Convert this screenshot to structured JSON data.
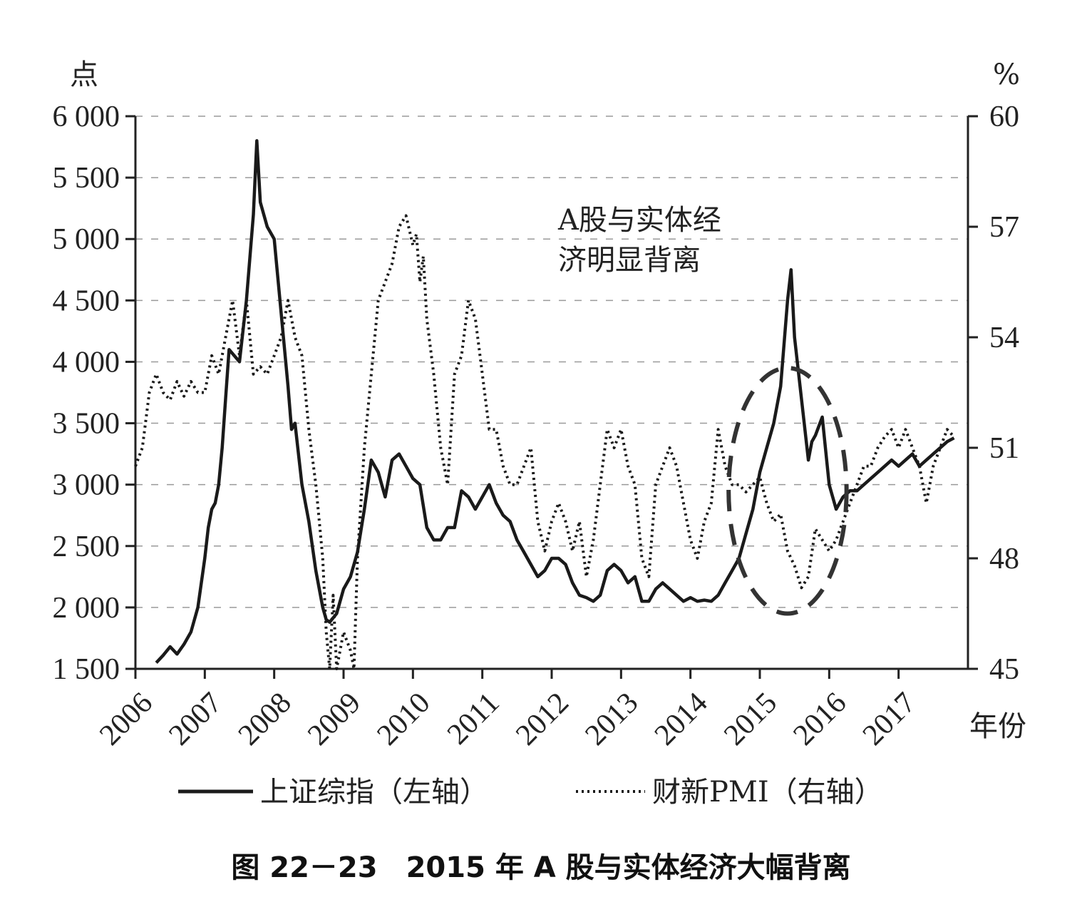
{
  "chart_data": {
    "type": "line",
    "title": "图 22－23　2015 年 A 股与实体经济大幅背离",
    "xlabel": "年份",
    "ylabel_left": "点",
    "ylabel_right": "%",
    "x_ticks": [
      "2006",
      "2007",
      "2008",
      "2009",
      "2010",
      "2011",
      "2012",
      "2013",
      "2014",
      "2015",
      "2016",
      "2017"
    ],
    "x_range": [
      2006.0,
      2018.0
    ],
    "y_left_range": [
      1500,
      6000
    ],
    "y_left_ticks": [
      "1 500",
      "2 000",
      "2 500",
      "3 000",
      "3 500",
      "4 000",
      "4 500",
      "5 000",
      "5 500",
      "6 000"
    ],
    "y_left_tick_values": [
      1500,
      2000,
      2500,
      3000,
      3500,
      4000,
      4500,
      5000,
      5500,
      6000
    ],
    "y_right_range": [
      45,
      60
    ],
    "y_right_ticks": [
      "45",
      "48",
      "51",
      "54",
      "57",
      "60"
    ],
    "y_right_tick_values": [
      45,
      48,
      51,
      54,
      57,
      60
    ],
    "grid": "horizontal-dashed",
    "legend_position": "bottom",
    "annotation": {
      "lines": [
        "A股与实体经",
        "济明显背离"
      ],
      "highlight": {
        "x_center": 2015.4,
        "x_halfwidth": 0.85,
        "y_center": 2950,
        "y_halfwidth": 1000
      }
    },
    "series": [
      {
        "name": "上证综指（左轴）",
        "axis": "left",
        "style": "solid",
        "color": "#1a1a1a",
        "x": [
          2006.3,
          2006.4,
          2006.5,
          2006.6,
          2006.7,
          2006.8,
          2006.9,
          2007.0,
          2007.05,
          2007.1,
          2007.15,
          2007.2,
          2007.25,
          2007.3,
          2007.35,
          2007.5,
          2007.6,
          2007.7,
          2007.75,
          2007.8,
          2007.9,
          2008.0,
          2008.1,
          2008.2,
          2008.25,
          2008.3,
          2008.4,
          2008.5,
          2008.6,
          2008.7,
          2008.75,
          2008.8,
          2008.9,
          2009.0,
          2009.1,
          2009.2,
          2009.3,
          2009.4,
          2009.5,
          2009.6,
          2009.7,
          2009.8,
          2009.9,
          2010.0,
          2010.1,
          2010.2,
          2010.3,
          2010.4,
          2010.5,
          2010.6,
          2010.7,
          2010.8,
          2010.9,
          2011.0,
          2011.1,
          2011.2,
          2011.3,
          2011.4,
          2011.5,
          2011.6,
          2011.7,
          2011.8,
          2011.9,
          2012.0,
          2012.1,
          2012.2,
          2012.3,
          2012.4,
          2012.5,
          2012.6,
          2012.7,
          2012.8,
          2012.9,
          2013.0,
          2013.1,
          2013.2,
          2013.3,
          2013.4,
          2013.5,
          2013.6,
          2013.7,
          2013.8,
          2013.9,
          2014.0,
          2014.1,
          2014.2,
          2014.3,
          2014.4,
          2014.5,
          2014.6,
          2014.7,
          2014.8,
          2014.9,
          2015.0,
          2015.1,
          2015.2,
          2015.3,
          2015.4,
          2015.45,
          2015.5,
          2015.6,
          2015.7,
          2015.75,
          2015.8,
          2015.9,
          2016.0,
          2016.1,
          2016.2,
          2016.3,
          2016.4,
          2016.5,
          2016.6,
          2016.7,
          2016.8,
          2016.9,
          2017.0,
          2017.1,
          2017.2,
          2017.3,
          2017.4,
          2017.5,
          2017.6,
          2017.7,
          2017.8
        ],
        "y": [
          1550,
          1610,
          1680,
          1620,
          1700,
          1800,
          2000,
          2400,
          2650,
          2800,
          2850,
          3000,
          3300,
          3700,
          4100,
          4000,
          4500,
          5200,
          5800,
          5300,
          5100,
          5000,
          4400,
          3800,
          3450,
          3500,
          3000,
          2700,
          2300,
          2000,
          1900,
          1880,
          1950,
          2150,
          2250,
          2450,
          2800,
          3200,
          3100,
          2900,
          3200,
          3250,
          3150,
          3050,
          3000,
          2650,
          2550,
          2550,
          2650,
          2650,
          2950,
          2900,
          2800,
          2900,
          3000,
          2850,
          2750,
          2700,
          2550,
          2450,
          2350,
          2250,
          2300,
          2400,
          2400,
          2350,
          2200,
          2100,
          2080,
          2050,
          2100,
          2300,
          2350,
          2300,
          2200,
          2250,
          2050,
          2050,
          2150,
          2200,
          2150,
          2100,
          2050,
          2080,
          2050,
          2060,
          2050,
          2100,
          2200,
          2300,
          2400,
          2600,
          2800,
          3100,
          3300,
          3500,
          3800,
          4500,
          4750,
          4200,
          3700,
          3200,
          3350,
          3400,
          3550,
          3000,
          2800,
          2900,
          2950,
          2950,
          3000,
          3050,
          3100,
          3150,
          3200,
          3150,
          3200,
          3250,
          3150,
          3200,
          3250,
          3300,
          3350,
          3380
        ]
      },
      {
        "name": "财新PMI（右轴）",
        "axis": "right",
        "style": "dotted",
        "color": "#1a1a1a",
        "x": [
          2006.0,
          2006.1,
          2006.2,
          2006.3,
          2006.4,
          2006.5,
          2006.6,
          2006.7,
          2006.8,
          2006.9,
          2007.0,
          2007.1,
          2007.2,
          2007.3,
          2007.4,
          2007.5,
          2007.6,
          2007.7,
          2007.8,
          2007.9,
          2008.0,
          2008.1,
          2008.2,
          2008.3,
          2008.4,
          2008.5,
          2008.6,
          2008.7,
          2008.75,
          2008.8,
          2008.85,
          2008.9,
          2009.0,
          2009.1,
          2009.15,
          2009.2,
          2009.3,
          2009.4,
          2009.5,
          2009.6,
          2009.7,
          2009.8,
          2009.9,
          2010.0,
          2010.05,
          2010.1,
          2010.15,
          2010.2,
          2010.3,
          2010.4,
          2010.5,
          2010.6,
          2010.7,
          2010.8,
          2010.9,
          2011.0,
          2011.1,
          2011.2,
          2011.3,
          2011.4,
          2011.5,
          2011.6,
          2011.7,
          2011.8,
          2011.9,
          2012.0,
          2012.1,
          2012.2,
          2012.3,
          2012.4,
          2012.5,
          2012.6,
          2012.7,
          2012.8,
          2012.9,
          2013.0,
          2013.1,
          2013.2,
          2013.3,
          2013.4,
          2013.5,
          2013.6,
          2013.7,
          2013.8,
          2013.9,
          2014.0,
          2014.1,
          2014.2,
          2014.3,
          2014.4,
          2014.5,
          2014.6,
          2014.7,
          2014.8,
          2014.9,
          2015.0,
          2015.1,
          2015.2,
          2015.3,
          2015.4,
          2015.5,
          2015.6,
          2015.7,
          2015.8,
          2015.9,
          2016.0,
          2016.1,
          2016.2,
          2016.3,
          2016.4,
          2016.5,
          2016.6,
          2016.7,
          2016.8,
          2016.9,
          2017.0,
          2017.1,
          2017.2,
          2017.3,
          2017.4,
          2017.5,
          2017.6,
          2017.7,
          2017.8
        ],
        "y": [
          50.5,
          51.0,
          52.5,
          53.0,
          52.5,
          52.3,
          52.8,
          52.4,
          52.8,
          52.5,
          52.5,
          53.5,
          53.0,
          54.0,
          55.0,
          53.5,
          55.0,
          53.0,
          53.2,
          53.0,
          53.5,
          54.0,
          55.0,
          54.0,
          53.5,
          51.5,
          50.0,
          48.0,
          46.0,
          45.0,
          47.0,
          45.0,
          46.0,
          45.5,
          45.0,
          48.0,
          51.0,
          53.0,
          55.0,
          55.5,
          56.0,
          57.0,
          57.3,
          56.5,
          56.8,
          55.5,
          56.2,
          54.5,
          53.0,
          51.0,
          50.0,
          53.0,
          53.5,
          55.0,
          54.5,
          53.0,
          51.5,
          51.5,
          50.5,
          50.0,
          50.0,
          50.5,
          51.0,
          49.0,
          48.2,
          49.0,
          49.5,
          49.0,
          48.2,
          49.0,
          47.5,
          48.5,
          50.0,
          51.5,
          51.0,
          51.5,
          50.5,
          50.0,
          48.0,
          47.5,
          50.0,
          50.5,
          51.0,
          50.5,
          49.5,
          48.5,
          48.0,
          49.0,
          49.5,
          51.5,
          50.5,
          50.0,
          50.0,
          49.8,
          50.0,
          50.2,
          49.5,
          49.0,
          49.2,
          48.2,
          47.8,
          47.2,
          47.5,
          48.8,
          48.5,
          48.2,
          48.5,
          49.0,
          49.5,
          50.0,
          50.5,
          50.5,
          51.0,
          51.3,
          51.5,
          51.0,
          51.5,
          51.0,
          50.5,
          49.5,
          50.5,
          51.0,
          51.5,
          51.3
        ]
      }
    ]
  }
}
